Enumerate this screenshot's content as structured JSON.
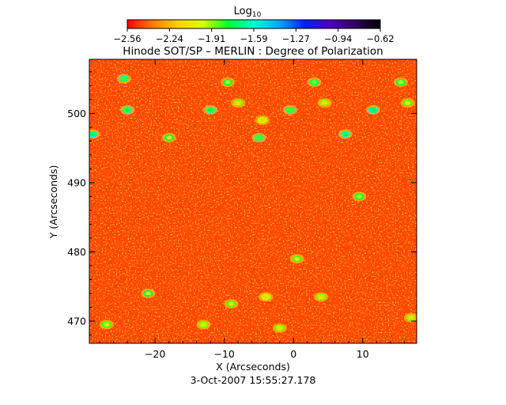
{
  "chart_data": {
    "type": "heatmap",
    "title": "Hinode SOT/SP – MERLIN : Degree of Polarization",
    "xlabel": "X (Arcseconds)",
    "ylabel": "Y (Arcseconds)",
    "timestamp": "3-Oct-2007 15:55:27.178",
    "xlim": [
      -29.5,
      17.8
    ],
    "ylim": [
      466.8,
      507.8
    ],
    "x_ticks": [
      -20,
      -10,
      0,
      10
    ],
    "y_ticks": [
      470,
      480,
      490,
      500
    ],
    "colorbar": {
      "label_base": "Log",
      "label_sub": "10",
      "ticks": [
        "−2.56",
        "−2.24",
        "−1.91",
        "−1.59",
        "−1.27",
        "−0.94",
        "−0.62"
      ],
      "range": [
        -2.56,
        -0.62
      ],
      "colormap": [
        "#ff0000",
        "#ff7a00",
        "#ffd200",
        "#d6ff00",
        "#00ff30",
        "#00ffd0",
        "#00a8ff",
        "#0020ff",
        "#5000c0",
        "#300060",
        "#000000"
      ]
    },
    "background_log10": -2.45,
    "features": [
      {
        "x": -29,
        "y": 497,
        "v": -1.75
      },
      {
        "x": -24,
        "y": 500.5,
        "v": -1.8
      },
      {
        "x": -24.5,
        "y": 505,
        "v": -1.85
      },
      {
        "x": -18,
        "y": 496.5,
        "v": -1.95
      },
      {
        "x": -12,
        "y": 500.5,
        "v": -1.8
      },
      {
        "x": -9.5,
        "y": 504.5,
        "v": -1.95
      },
      {
        "x": -8,
        "y": 501.5,
        "v": -2.1
      },
      {
        "x": -5,
        "y": 496.5,
        "v": -1.85
      },
      {
        "x": -4.5,
        "y": 499,
        "v": -2.15
      },
      {
        "x": -0.5,
        "y": 500.5,
        "v": -1.85
      },
      {
        "x": 3,
        "y": 504.5,
        "v": -1.9
      },
      {
        "x": 4.5,
        "y": 501.5,
        "v": -2.1
      },
      {
        "x": 7.5,
        "y": 497,
        "v": -1.8
      },
      {
        "x": 11.5,
        "y": 500.5,
        "v": -1.75
      },
      {
        "x": 15.5,
        "y": 504.5,
        "v": -1.95
      },
      {
        "x": 16.5,
        "y": 501.5,
        "v": -2.05
      },
      {
        "x": 9.5,
        "y": 488,
        "v": -1.95
      },
      {
        "x": 0.5,
        "y": 479,
        "v": -2.05
      },
      {
        "x": -21,
        "y": 474,
        "v": -1.95
      },
      {
        "x": -9,
        "y": 472.5,
        "v": -2.05
      },
      {
        "x": -4,
        "y": 473.5,
        "v": -2.15
      },
      {
        "x": 4,
        "y": 473.5,
        "v": -2.1
      },
      {
        "x": -27,
        "y": 469.5,
        "v": -2.05
      },
      {
        "x": -13,
        "y": 469.5,
        "v": -2.1
      },
      {
        "x": -2,
        "y": 469,
        "v": -2.1
      },
      {
        "x": 17,
        "y": 470.5,
        "v": -2.1
      }
    ]
  }
}
